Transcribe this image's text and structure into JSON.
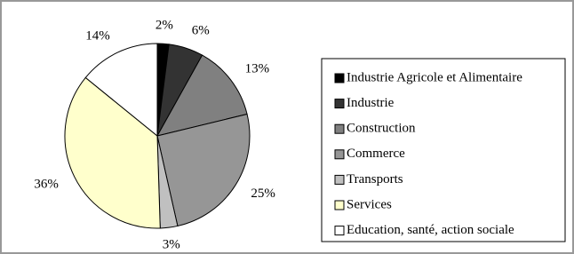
{
  "chart_data": {
    "type": "pie",
    "categories": [
      "Industrie Agricole et Alimentaire",
      "Industrie",
      "Construction",
      "Commerce",
      "Transports",
      "Services",
      "Education, santé, action sociale"
    ],
    "values": [
      2,
      6,
      13,
      25,
      3,
      36,
      14
    ],
    "value_labels": [
      "2%",
      "6%",
      "13%",
      "25%",
      "3%",
      "36%",
      "14%"
    ],
    "colors": [
      "#000000",
      "#333333",
      "#808080",
      "#969696",
      "#c0c0c0",
      "#ffffcc",
      "#ffffff"
    ]
  }
}
